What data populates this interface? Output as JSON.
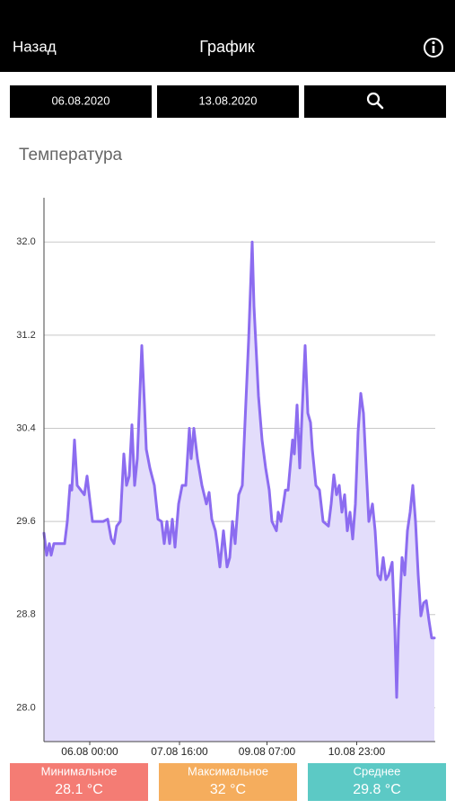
{
  "header": {
    "back": "Назад",
    "title": "График"
  },
  "filter": {
    "date_from": "06.08.2020",
    "date_to": "13.08.2020"
  },
  "chart_data": {
    "type": "area",
    "title": "Температура",
    "color": "#8c6cf0",
    "fill_color": "#e3ddfb",
    "x": [
      -20.4,
      -19.2,
      -18,
      -17.2,
      -16,
      -11.2,
      -10,
      -8.8,
      -8,
      -6.8,
      -5.6,
      -4,
      -2.4,
      -1.2,
      0,
      1.2,
      6,
      8,
      9.6,
      10.8,
      12,
      13.6,
      15.2,
      16.4,
      17.6,
      18.8,
      20,
      21.2,
      23.2,
      24.4,
      25.2,
      26.8,
      28.8,
      30.4,
      32,
      33.2,
      34.4,
      35.6,
      36.8,
      38,
      39.6,
      41.2,
      42.8,
      44.4,
      45.2,
      46.4,
      48,
      50,
      52,
      53.2,
      54.4,
      56,
      56.8,
      58,
      59.6,
      61.2,
      62.4,
      63.6,
      64.8,
      66.4,
      68,
      69.2,
      70.8,
      72.4,
      73.2,
      74.4,
      75.2,
      76.8,
      78.4,
      80,
      81.2,
      83.2,
      84,
      85.2,
      87.2,
      88.4,
      90.4,
      91.2,
      92.4,
      93.6,
      94.8,
      96,
      97.2,
      98.4,
      99.2,
      100.8,
      102.4,
      104,
      106.4,
      107.6,
      108.8,
      110,
      111.2,
      112.4,
      113.6,
      114.8,
      116,
      117.2,
      118.4,
      119.6,
      120.8,
      122,
      123.2,
      124.4,
      126,
      127.2,
      128.4,
      129.6,
      130.8,
      132,
      133.2,
      134.8,
      136,
      136.8,
      137.6,
      139.2,
      140.4,
      141.6,
      142.8,
      144,
      145.2,
      146.4,
      147.6,
      148.8,
      150,
      151.2,
      152.4,
      153.6
    ],
    "values": [
      29.5,
      29.31,
      29.41,
      29.31,
      29.41,
      29.41,
      29.6,
      29.91,
      29.87,
      30.3,
      29.91,
      29.87,
      29.83,
      29.99,
      29.79,
      29.6,
      29.6,
      29.62,
      29.45,
      29.41,
      29.56,
      29.6,
      30.18,
      29.91,
      29.99,
      30.43,
      29.91,
      30.14,
      31.11,
      30.6,
      30.22,
      30.06,
      29.91,
      29.62,
      29.6,
      29.41,
      29.6,
      29.41,
      29.62,
      29.38,
      29.75,
      29.91,
      29.91,
      30.4,
      30.14,
      30.4,
      30.14,
      29.91,
      29.75,
      29.85,
      29.62,
      29.52,
      29.41,
      29.21,
      29.52,
      29.21,
      29.29,
      29.6,
      29.41,
      29.83,
      29.91,
      30.45,
      31.15,
      32.0,
      31.45,
      30.99,
      30.68,
      30.3,
      30.06,
      29.87,
      29.6,
      29.52,
      29.68,
      29.6,
      29.87,
      29.87,
      30.3,
      30.18,
      30.6,
      30.06,
      30.6,
      31.11,
      30.53,
      30.45,
      30.22,
      29.91,
      29.87,
      29.6,
      29.56,
      29.75,
      30.0,
      29.83,
      29.91,
      29.68,
      29.83,
      29.52,
      29.68,
      29.45,
      29.75,
      30.37,
      30.7,
      30.53,
      30.06,
      29.6,
      29.75,
      29.52,
      29.14,
      29.1,
      29.29,
      29.1,
      29.14,
      29.25,
      28.67,
      28.09,
      28.67,
      29.29,
      29.14,
      29.52,
      29.68,
      29.91,
      29.6,
      29.14,
      28.79,
      28.9,
      28.92,
      28.75,
      28.6,
      28.6
    ],
    "xlim": [
      -20.4,
      154
    ],
    "ylim": [
      27.71,
      32.38
    ],
    "xticks": [
      {
        "value": 0,
        "label": "06.08 00:00"
      },
      {
        "value": 40,
        "label": "07.08 16:00"
      },
      {
        "value": 79,
        "label": "09.08 07:00"
      },
      {
        "value": 119,
        "label": "10.08 23:00"
      }
    ],
    "yticks": [
      {
        "value": 28.0,
        "label": "28.0"
      },
      {
        "value": 28.8,
        "label": "28.8"
      },
      {
        "value": 29.6,
        "label": "29.6"
      },
      {
        "value": 30.4,
        "label": "30.4"
      },
      {
        "value": 31.2,
        "label": "31.2"
      },
      {
        "value": 32.0,
        "label": "32.0"
      }
    ],
    "grid": true
  },
  "stats": [
    {
      "label": "Минимальное",
      "value": "28.1 °C",
      "color": "#f47c74"
    },
    {
      "label": "Максимальное",
      "value": "32 °C",
      "color": "#f5ad5d"
    },
    {
      "label": "Среднее",
      "value": "29.8 °C",
      "color": "#5cc9c5"
    }
  ]
}
